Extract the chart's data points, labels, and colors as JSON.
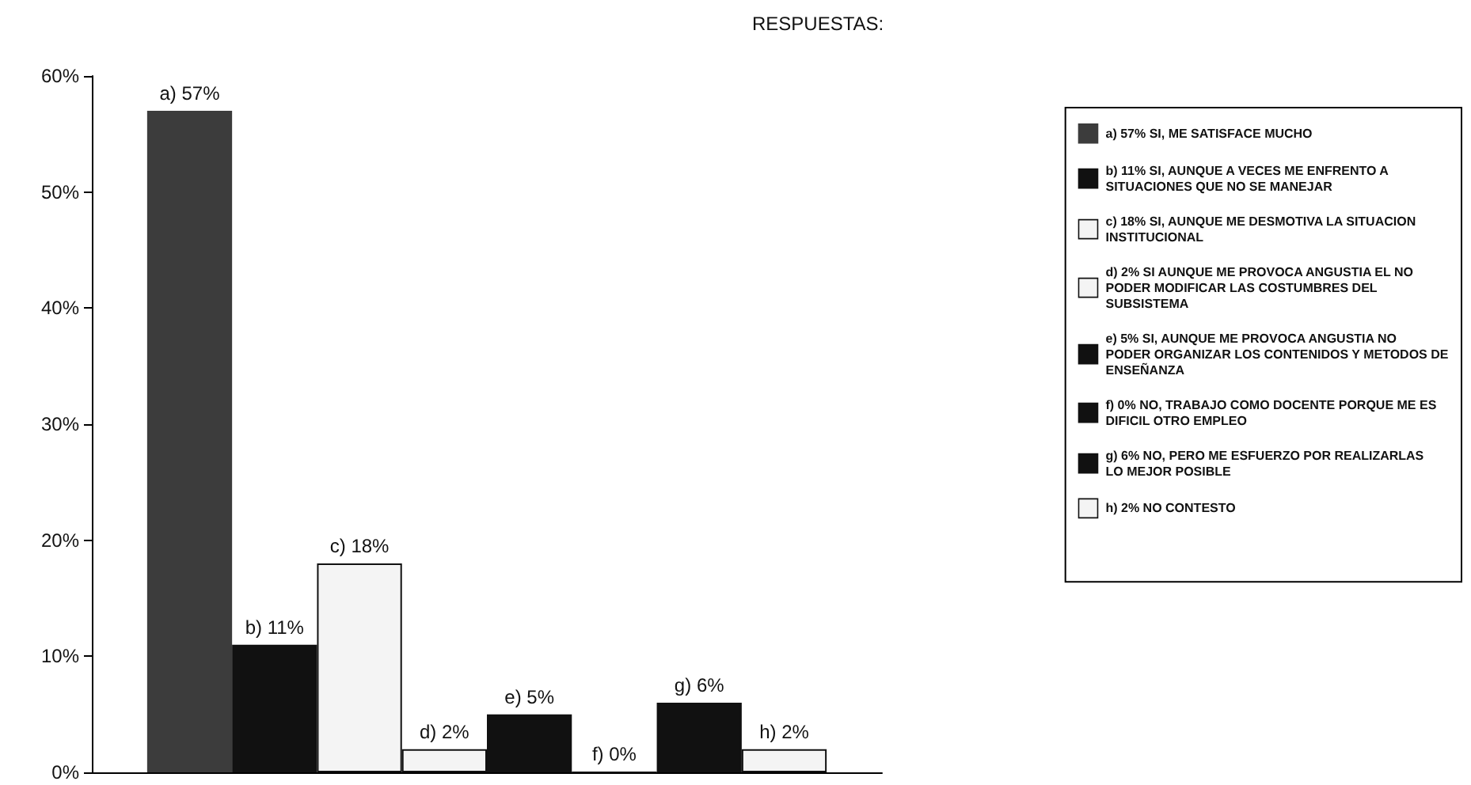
{
  "chart_data": {
    "type": "bar",
    "title": "RESPUESTAS:",
    "categories": [
      null
    ],
    "series": [
      {
        "name": "a) 57% SI, ME SATISFACE MUCHO",
        "color": "#3c3c3c",
        "values": [
          57
        ],
        "value_labels": [
          "a) 57%"
        ]
      },
      {
        "name": "b) 11% SI, AUNQUE A VECES ME ENFRENTO A SITUACIONES QUE NO SE MANEJAR",
        "color": "#111111",
        "values": [
          11
        ],
        "value_labels": [
          "b) 11%"
        ]
      },
      {
        "name": "c) 18% SI, AUNQUE ME DESMOTIVA LA SITUACION INSTITUCIONAL",
        "color": "#f4f4f4",
        "values": [
          18
        ],
        "value_labels": [
          "c) 18%"
        ]
      },
      {
        "name": "d) 2% SI AUNQUE ME PROVOCA ANGUSTIA EL NO PODER MODIFICAR LAS COSTUMBRES DEL SUBSISTEMA",
        "color": "#f4f4f4",
        "values": [
          2
        ],
        "value_labels": [
          "d) 2%"
        ]
      },
      {
        "name": "e) 5% SI, AUNQUE ME PROVOCA ANGUSTIA NO PODER ORGANIZAR LOS CONTENIDOS Y METODOS DE ENSEÑANZA",
        "color": "#111111",
        "values": [
          5
        ],
        "value_labels": [
          "e) 5%"
        ]
      },
      {
        "name": "f) 0% NO, TRABAJO COMO DOCENTE PORQUE ME ES DIFICIL OTRO EMPLEO",
        "color": "#111111",
        "values": [
          0
        ],
        "value_labels": [
          "f) 0%"
        ]
      },
      {
        "name": "g) 6% NO, PERO ME ESFUERZO POR REALIZARLAS LO MEJOR POSIBLE",
        "color": "#111111",
        "values": [
          6
        ],
        "value_labels": [
          "g) 6%"
        ]
      },
      {
        "name": "h) 2% NO CONTESTO",
        "color": "#f4f4f4",
        "values": [
          2
        ],
        "value_labels": [
          "h) 2%"
        ]
      }
    ],
    "ylim": [
      0,
      60
    ],
    "yticks": [
      {
        "value": 0,
        "label": "0%"
      },
      {
        "value": 10,
        "label": "10%"
      },
      {
        "value": 20,
        "label": "20%"
      },
      {
        "value": 30,
        "label": "30%"
      },
      {
        "value": 40,
        "label": "40%"
      },
      {
        "value": 50,
        "label": "50%"
      },
      {
        "value": 60,
        "label": "60%"
      }
    ],
    "grid": false,
    "legend": "right"
  }
}
